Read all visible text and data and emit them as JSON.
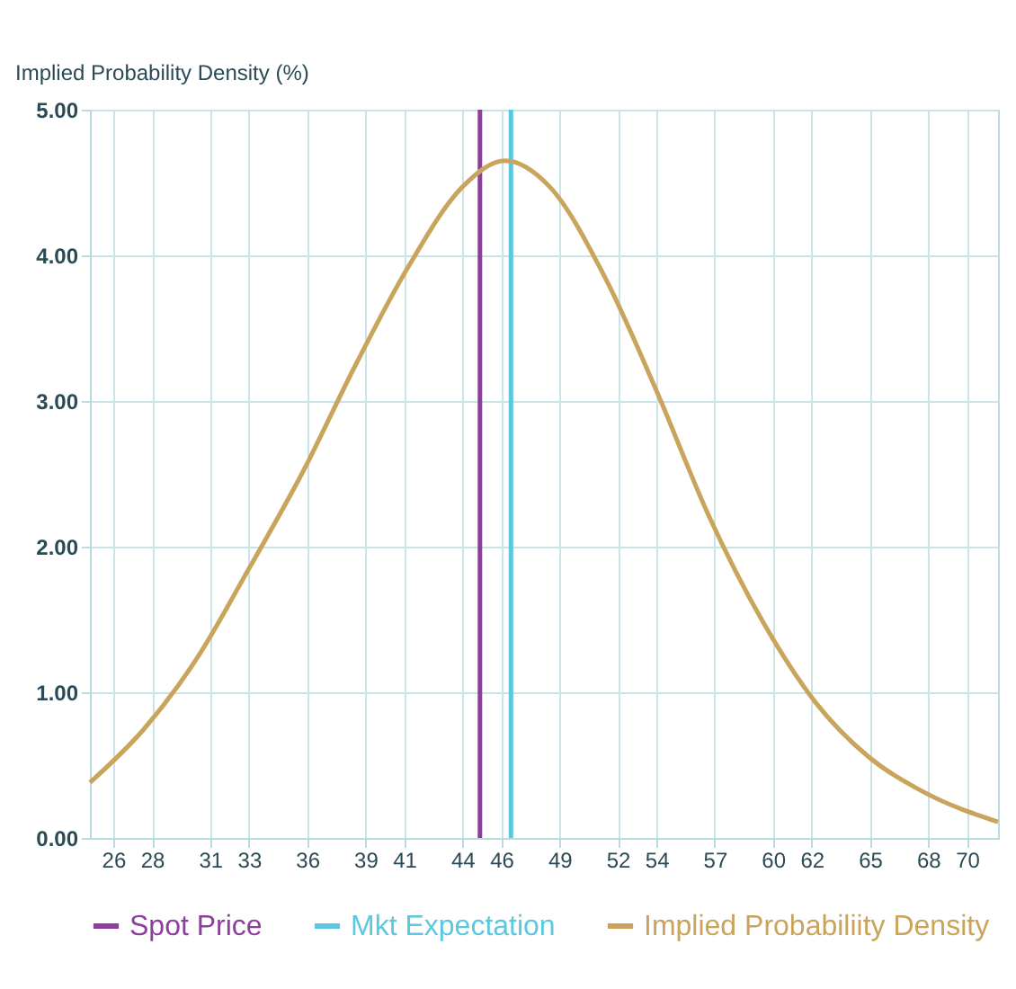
{
  "chart_data": {
    "type": "line",
    "ylabel": "Implied Probability Density (%)",
    "xlim": [
      24.8,
      71.6
    ],
    "xticks": [
      26,
      28,
      31,
      33,
      36,
      39,
      41,
      44,
      46,
      49,
      52,
      54,
      57,
      60,
      62,
      65,
      68,
      70
    ],
    "ylim": [
      0,
      5
    ],
    "yticks": [
      {
        "value": 0,
        "label": "0.00"
      },
      {
        "value": 1,
        "label": "1.00"
      },
      {
        "value": 2,
        "label": "2.00"
      },
      {
        "value": 3,
        "label": "3.00"
      },
      {
        "value": 4,
        "label": "4.00"
      },
      {
        "value": 5,
        "label": "5.00"
      }
    ],
    "grid": true,
    "legend": "bottom",
    "line_style": "solid",
    "marker": "none",
    "series": [
      {
        "name": "Spot Price",
        "color": "#8e3f9e",
        "x": [
          44.9,
          44.9
        ],
        "values": [
          0,
          5
        ]
      },
      {
        "name": "Mkt Expectation",
        "color": "#5bc8e0",
        "x": [
          46.5,
          46.5
        ],
        "values": [
          0,
          5
        ]
      },
      {
        "name": "Implied Probabiliity Density",
        "color": "#c9a45c",
        "x": [
          24.8,
          27.6,
          30.3,
          33.0,
          35.8,
          38.5,
          41.2,
          44.0,
          46.2,
          48.5,
          51.3,
          54.0,
          56.7,
          59.5,
          62.2,
          64.9,
          67.7,
          71.6
        ],
        "values": [
          0.38,
          0.75,
          1.23,
          1.85,
          2.52,
          3.25,
          3.92,
          4.47,
          4.65,
          4.47,
          3.86,
          3.07,
          2.21,
          1.48,
          0.93,
          0.56,
          0.32,
          0.11
        ]
      }
    ]
  }
}
